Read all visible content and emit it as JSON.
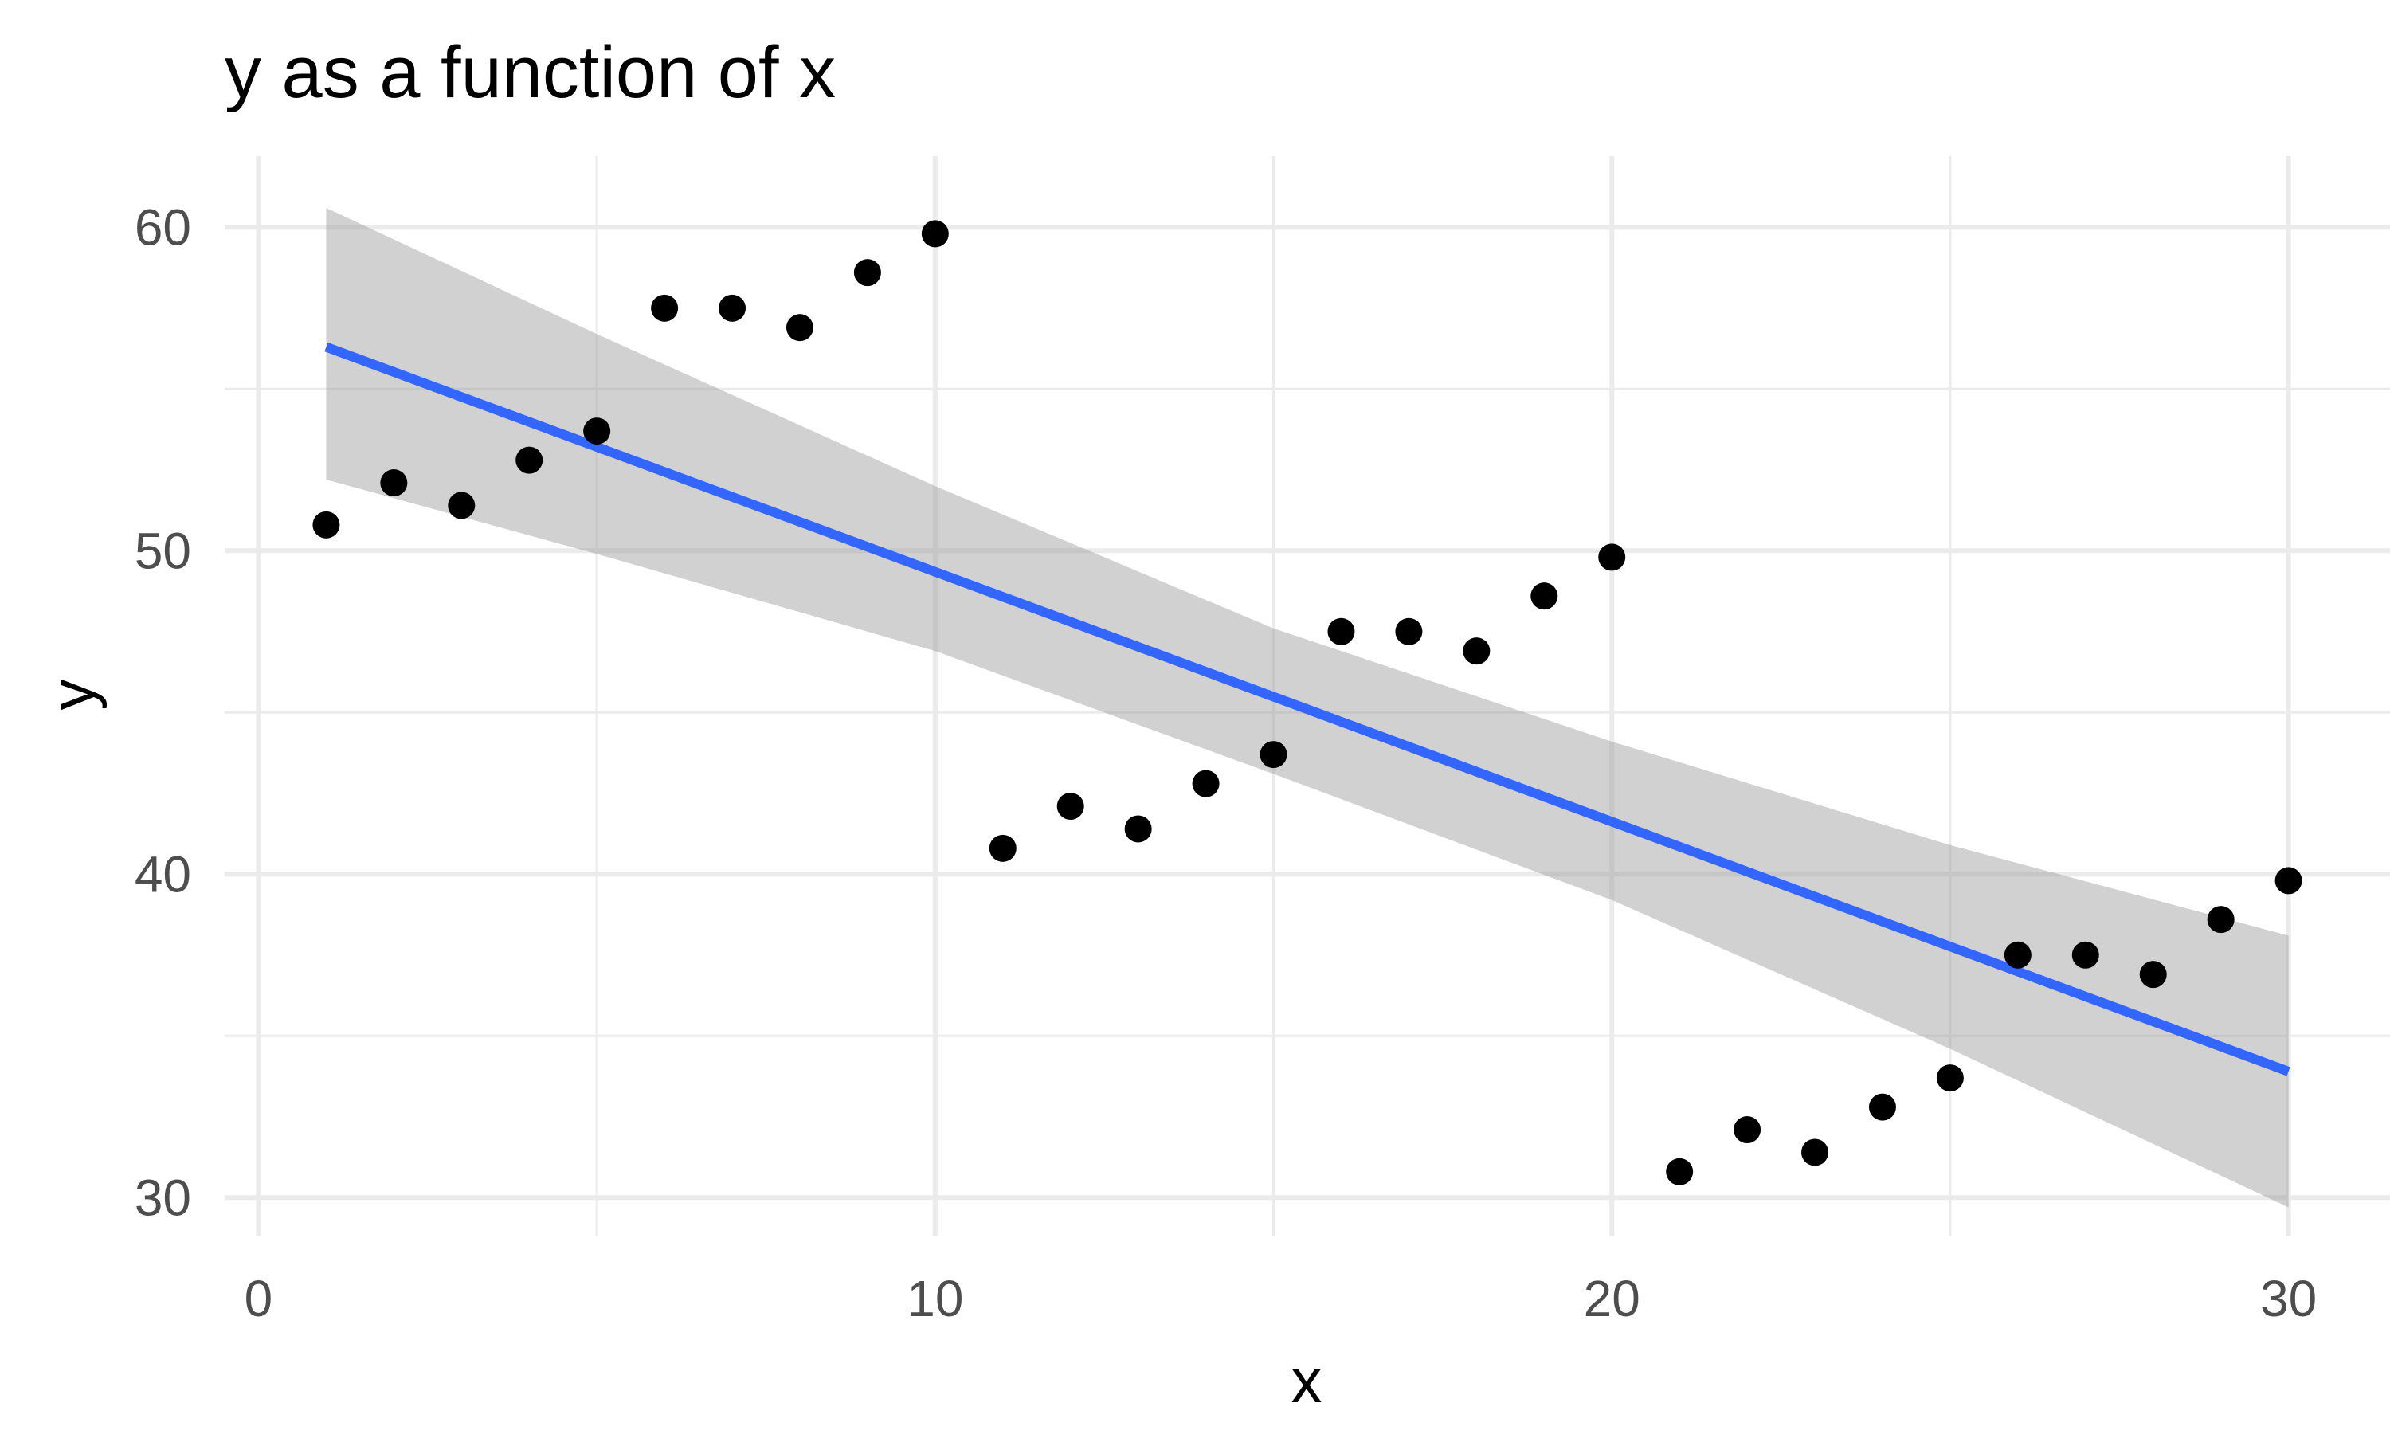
{
  "chart_data": {
    "type": "scatter",
    "title": "y as a function of x",
    "xlabel": "x",
    "ylabel": "y",
    "xlim": [
      -0.5,
      31.5
    ],
    "ylim": [
      28.8,
      62.2
    ],
    "x_ticks": [
      0,
      10,
      20,
      30
    ],
    "x_tick_labels": [
      "0",
      "10",
      "20",
      "30"
    ],
    "y_ticks": [
      30,
      40,
      50,
      60
    ],
    "y_tick_labels": [
      "30",
      "40",
      "50",
      "60"
    ],
    "grid": true,
    "legend": "none",
    "series": [
      {
        "kind": "points",
        "color": "#000000",
        "x": [
          1,
          2,
          3,
          4,
          5,
          6,
          7,
          8,
          9,
          10,
          11,
          12,
          13,
          14,
          15,
          16,
          17,
          18,
          19,
          20,
          21,
          22,
          23,
          24,
          25,
          26,
          27,
          28,
          29,
          30
        ],
        "y": [
          50.8,
          52.1,
          51.4,
          52.8,
          53.7,
          57.5,
          57.5,
          56.9,
          58.6,
          59.8,
          40.8,
          42.1,
          41.4,
          42.8,
          43.7,
          47.5,
          47.5,
          46.9,
          48.6,
          49.8,
          30.8,
          32.1,
          31.4,
          32.8,
          33.7,
          37.5,
          37.5,
          36.9,
          38.6,
          39.8
        ]
      },
      {
        "kind": "regression-line",
        "color": "#3366ff",
        "x": [
          1,
          30
        ],
        "y": [
          56.3,
          33.9
        ]
      },
      {
        "kind": "confidence-band",
        "color": "#999999",
        "x": [
          1,
          5,
          10,
          15,
          20,
          25,
          30
        ],
        "upper": [
          60.6,
          56.7,
          52.0,
          47.6,
          44.1,
          40.9,
          38.1
        ],
        "lower": [
          52.2,
          49.9,
          46.9,
          43.1,
          39.2,
          34.6,
          29.7
        ]
      }
    ]
  }
}
